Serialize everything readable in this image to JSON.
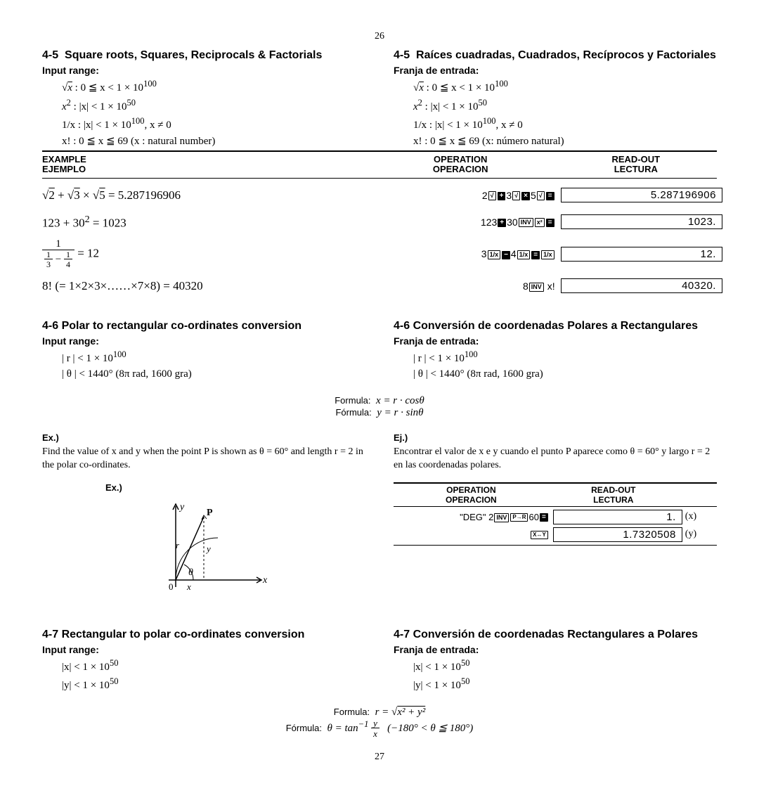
{
  "page_top_num": "26",
  "page_bottom_num": "27",
  "s45": {
    "left": {
      "num": "4-5",
      "title": "Square roots, Squares, Reciprocals & Factorials",
      "subhead": "Input range:",
      "l1a": "√",
      "l1b": "x",
      "l1c": " : 0 ≦ x < 1 × 10",
      "l1exp": "100",
      "l2a": "x",
      "l2sup": "2",
      "l2b": " : |x| < 1 × 10",
      "l2exp": "50",
      "l3a": "1/x : |x| < 1 × 10",
      "l3exp": "100",
      "l3b": ", x ≠ 0",
      "l4a": "x!  : 0 ≦ x ≦ 69  (x : natural number)"
    },
    "right": {
      "num": "4-5",
      "title": "Raíces cuadradas, Cuadrados, Recíprocos y Factoriales",
      "subhead": "Franja de entrada:",
      "l1a": "√",
      "l1b": "x",
      "l1c": " : 0 ≦ x < 1 × 10",
      "l1exp": "100",
      "l2a": "x",
      "l2sup": "2",
      "l2b": " : |x| < 1 × 10",
      "l2exp": "50",
      "l3a": "1/x : |x| < 1 × 10",
      "l3exp": "100",
      "l3b": ", x ≠ 0",
      "l4a": "x!  : 0 ≦ x ≦ 69  (x: número natural)"
    }
  },
  "tbl_head": {
    "c1a": "EXAMPLE",
    "c1b": "EJEMPLO",
    "c2a": "OPERATION",
    "c2b": "OPERACION",
    "c3a": "READ-OUT",
    "c3b": "LECTURA"
  },
  "examples": [
    {
      "left_html": "√<span class='over'>2</span> + √<span class='over'>3</span> × √<span class='over'>5</span> = 5.287196906",
      "op_html": "2<span class='keyw'>√</span><span class='key'>+</span>3<span class='keyw'>√</span><span class='key'>×</span>5<span class='keyw'>√</span><span class='key'>=</span>",
      "readout": "5.287196906"
    },
    {
      "left_html": "123 + 30<sup>2</sup> = 1023",
      "op_html": "123<span class='key'>+</span>30<span class='keyw'>INV</span><span class='keyw'>x²</span><span class='key'>=</span>",
      "readout": "1023."
    },
    {
      "left_html": "<span class='frac'><span class='n'>1</span><span class='d'><span class='frac' style='font-size:12px'><span class='n'>1</span><span class='d'>3</span></span> − <span class='frac' style='font-size:12px'><span class='n'>1</span><span class='d'>4</span></span></span></span> = 12",
      "op_html": "3<span class='keyw'>1/x</span><span class='key'>−</span>4<span class='keyw'>1/x</span><span class='key'>=</span><span class='keyw'>1/x</span>",
      "readout": "12."
    },
    {
      "left_html": "8! (= 1×2×3×……×7×8) = 40320",
      "op_html": "8<span class='keyw'>INV</span> x!",
      "readout": "40320."
    }
  ],
  "s46": {
    "left": {
      "num": "4-6",
      "title": "Polar to rectangular co-ordinates conversion",
      "subhead": "Input range:",
      "l1": "| r | < 1 × 10",
      "l1exp": "100",
      "l2": "| θ | < 1440°  (8π rad, 1600 gra)"
    },
    "right": {
      "num": "4-6",
      "title": "Conversión de coordenadas Polares a Rectangulares",
      "subhead": "Franja de entrada:",
      "l1": "| r | < 1 × 10",
      "l1exp": "100",
      "l2": "| θ | < 1440°  (8π rad, 1600 gra)"
    },
    "formula_lab1": "Formula:",
    "formula_lab2": "Fórmula:",
    "formula1": "x = r · cosθ",
    "formula2": "y = r · sinθ",
    "ex_l_head": "Ex.)",
    "ex_l_body": "Find the value of x and y when the point P is shown as θ = 60° and length r = 2 in the polar co-ordinates.",
    "ex_r_head": "Ej.)",
    "ex_r_body": "Encontrar el valor de x e y cuando el punto P aparece como θ = 60° y largo r = 2 en las coordenadas polares.",
    "diag_label": "Ex.)",
    "optbl_head_o1a": "OPERATION",
    "optbl_head_o1b": "OPERACION",
    "optbl_head_o2a": "READ-OUT",
    "optbl_head_o2b": "LECTURA",
    "op_rows": [
      {
        "op_html": "\"DEG\" 2<span class='keyw'>INV</span><span class='keyw' style='font-size:8px'>P→R</span>60<span class='key'>=</span>",
        "readout": "1.",
        "suffix": "(x)"
      },
      {
        "op_html": "<span class='keyw' style='font-size:8px'>X↔Y</span>",
        "readout": "1.7320508",
        "suffix": "(y)"
      }
    ]
  },
  "s47": {
    "left": {
      "num": "4-7",
      "title": "Rectangular to polar co-ordinates conversion",
      "subhead": "Input range:",
      "l1": "|x| < 1 × 10",
      "l1exp": "50",
      "l2": "|y| < 1 × 10",
      "l2exp": "50"
    },
    "right": {
      "num": "4-7",
      "title": "Conversión de coordenadas Rectangulares a Polares",
      "subhead": "Franja de entrada:",
      "l1": "|x| < 1 × 10",
      "l1exp": "50",
      "l2": "|y| < 1 × 10",
      "l2exp": "50"
    },
    "formula_lab1": "Formula:",
    "formula_lab2": "Fórmula:",
    "formula1_html": "r = √<span class='over'>x² + y²</span>",
    "formula2_html": "θ = tan<sup>−1</sup> <span class='frac' style='font-size:13px'><span class='n'>y</span><span class='d'>x</span></span> &nbsp; (−180° &lt; θ ≦ 180°)"
  },
  "colors": {
    "text": "#000000",
    "bg": "#ffffff"
  }
}
